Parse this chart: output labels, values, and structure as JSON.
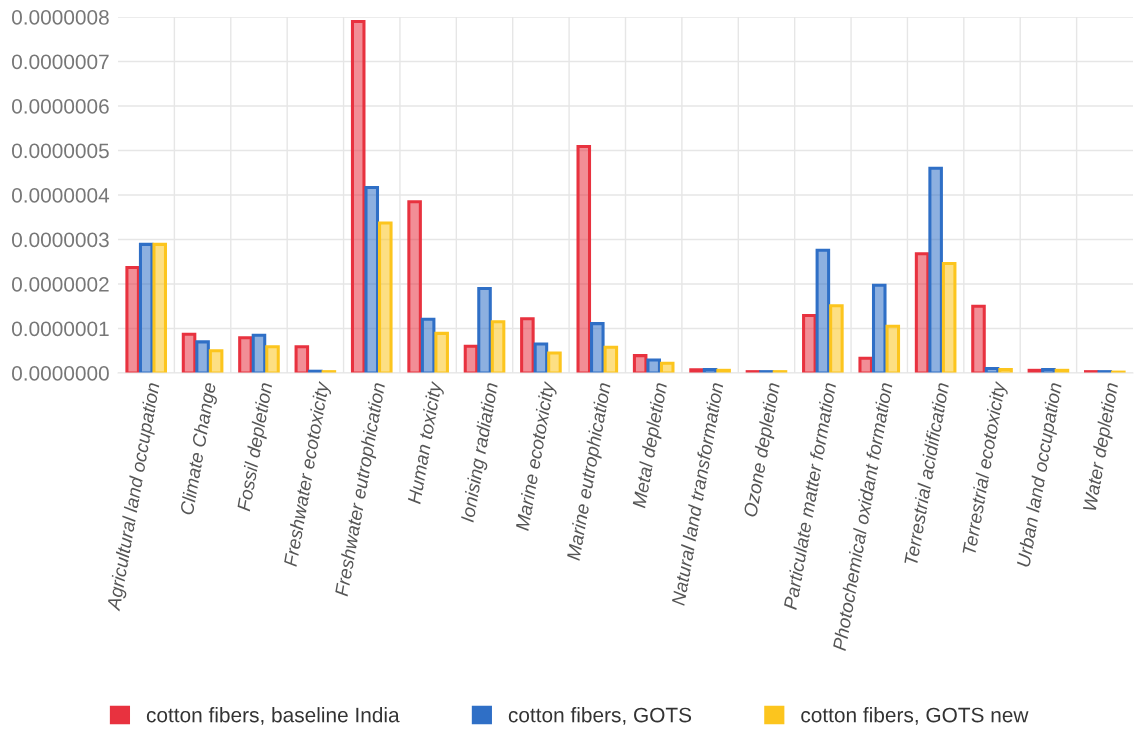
{
  "chart_data": {
    "type": "bar",
    "categories": [
      "Agricultural land occupation",
      "Climate Change",
      "Fossil depletion",
      "Freshwater ecotoxicity",
      "Freshwater eutrophication",
      "Human toxicity",
      "Ionising radiation",
      "Marine ecotoxicity",
      "Marine eutrophication",
      "Metal depletion",
      "Natural land transformation",
      "Ozone depletion",
      "Particulate matter formation",
      "Photochemical oxidant formation",
      "Terrestrial acidification",
      "Terrestrial ecotoxicity",
      "Urban land occupation",
      "Water depletion"
    ],
    "series": [
      {
        "name": "cotton fibers, baseline India",
        "color": "#e8323f",
        "values": [
          2.37e-07,
          8.7e-08,
          7.9e-08,
          5.9e-08,
          7.9e-07,
          3.85e-07,
          6e-08,
          1.22e-07,
          5.09e-07,
          3.9e-08,
          7e-09,
          3e-09,
          1.29e-07,
          3.3e-08,
          2.68e-07,
          1.5e-07,
          6e-09,
          3e-09
        ]
      },
      {
        "name": "cotton fibers, GOTS",
        "color": "#2f6fc6",
        "values": [
          2.89e-07,
          7e-08,
          8.5e-08,
          4e-09,
          4.17e-07,
          1.21e-07,
          1.9e-07,
          6.5e-08,
          1.11e-07,
          2.9e-08,
          8e-09,
          3e-09,
          2.76e-07,
          1.97e-07,
          4.6e-07,
          1e-08,
          8e-09,
          3e-09
        ]
      },
      {
        "name": "cotton fibers, GOTS new",
        "color": "#fcc51e",
        "values": [
          2.89e-07,
          5e-08,
          5.9e-08,
          3e-09,
          3.37e-07,
          8.9e-08,
          1.15e-07,
          4.5e-08,
          5.8e-08,
          2.2e-08,
          6e-09,
          3e-09,
          1.51e-07,
          1.05e-07,
          2.46e-07,
          8e-09,
          6e-09,
          2e-09
        ]
      }
    ],
    "ylim": [
      0,
      8e-07
    ],
    "yticks": [
      {
        "value": 0,
        "label": "0.0000000"
      },
      {
        "value": 1e-07,
        "label": "0.0000001"
      },
      {
        "value": 2e-07,
        "label": "0.0000002"
      },
      {
        "value": 3e-07,
        "label": "0.0000003"
      },
      {
        "value": 4e-07,
        "label": "0.0000004"
      },
      {
        "value": 5e-07,
        "label": "0.0000005"
      },
      {
        "value": 6e-07,
        "label": "0.0000006"
      },
      {
        "value": 7e-07,
        "label": "0.0000007"
      },
      {
        "value": 8e-07,
        "label": "0.0000008"
      }
    ],
    "grid": true,
    "legend": "bottom"
  }
}
